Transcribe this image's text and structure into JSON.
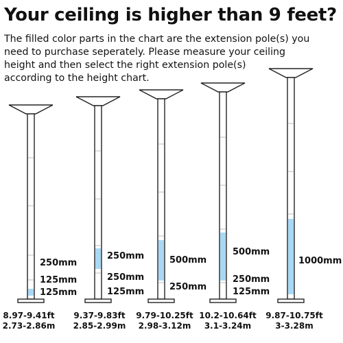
{
  "header": {
    "title": "Your ceiling is higher than 9 feet?",
    "intro_lines": [
      "The filled color parts in the chart are the extension pole(s) you",
      "need to purchase seperately.  Please measure your ceiling",
      "height and then select the right extension pole(s)",
      "according to the height chart."
    ]
  },
  "colors": {
    "fill": "#a9d8f5",
    "outline": "#222222",
    "tick": "#bbbbbb"
  },
  "poles": [
    {
      "ft_range": "8.97-9.41ft",
      "m_range": "2.73-2.86m",
      "labels": [
        "250mm",
        "125mm",
        "125mm"
      ],
      "filled_label": "125mm"
    },
    {
      "ft_range": "9.37-9.83ft",
      "m_range": "2.85-2.99m",
      "labels": [
        "250mm",
        "250mm",
        "125mm"
      ],
      "filled_label": "250mm"
    },
    {
      "ft_range": "9.79-10.25ft",
      "m_range": "2.98-3.12m",
      "labels": [
        "500mm",
        "250mm"
      ],
      "filled_label": "500mm"
    },
    {
      "ft_range": "10.2-10.64ft",
      "m_range": "3.1-3.24m",
      "labels": [
        "500mm",
        "250mm",
        "125mm"
      ],
      "filled_label": "500mm"
    },
    {
      "ft_range": "9.87-10.75ft",
      "m_range": "3-3.28m",
      "labels": [
        "1000mm"
      ],
      "filled_label": "1000mm"
    }
  ]
}
